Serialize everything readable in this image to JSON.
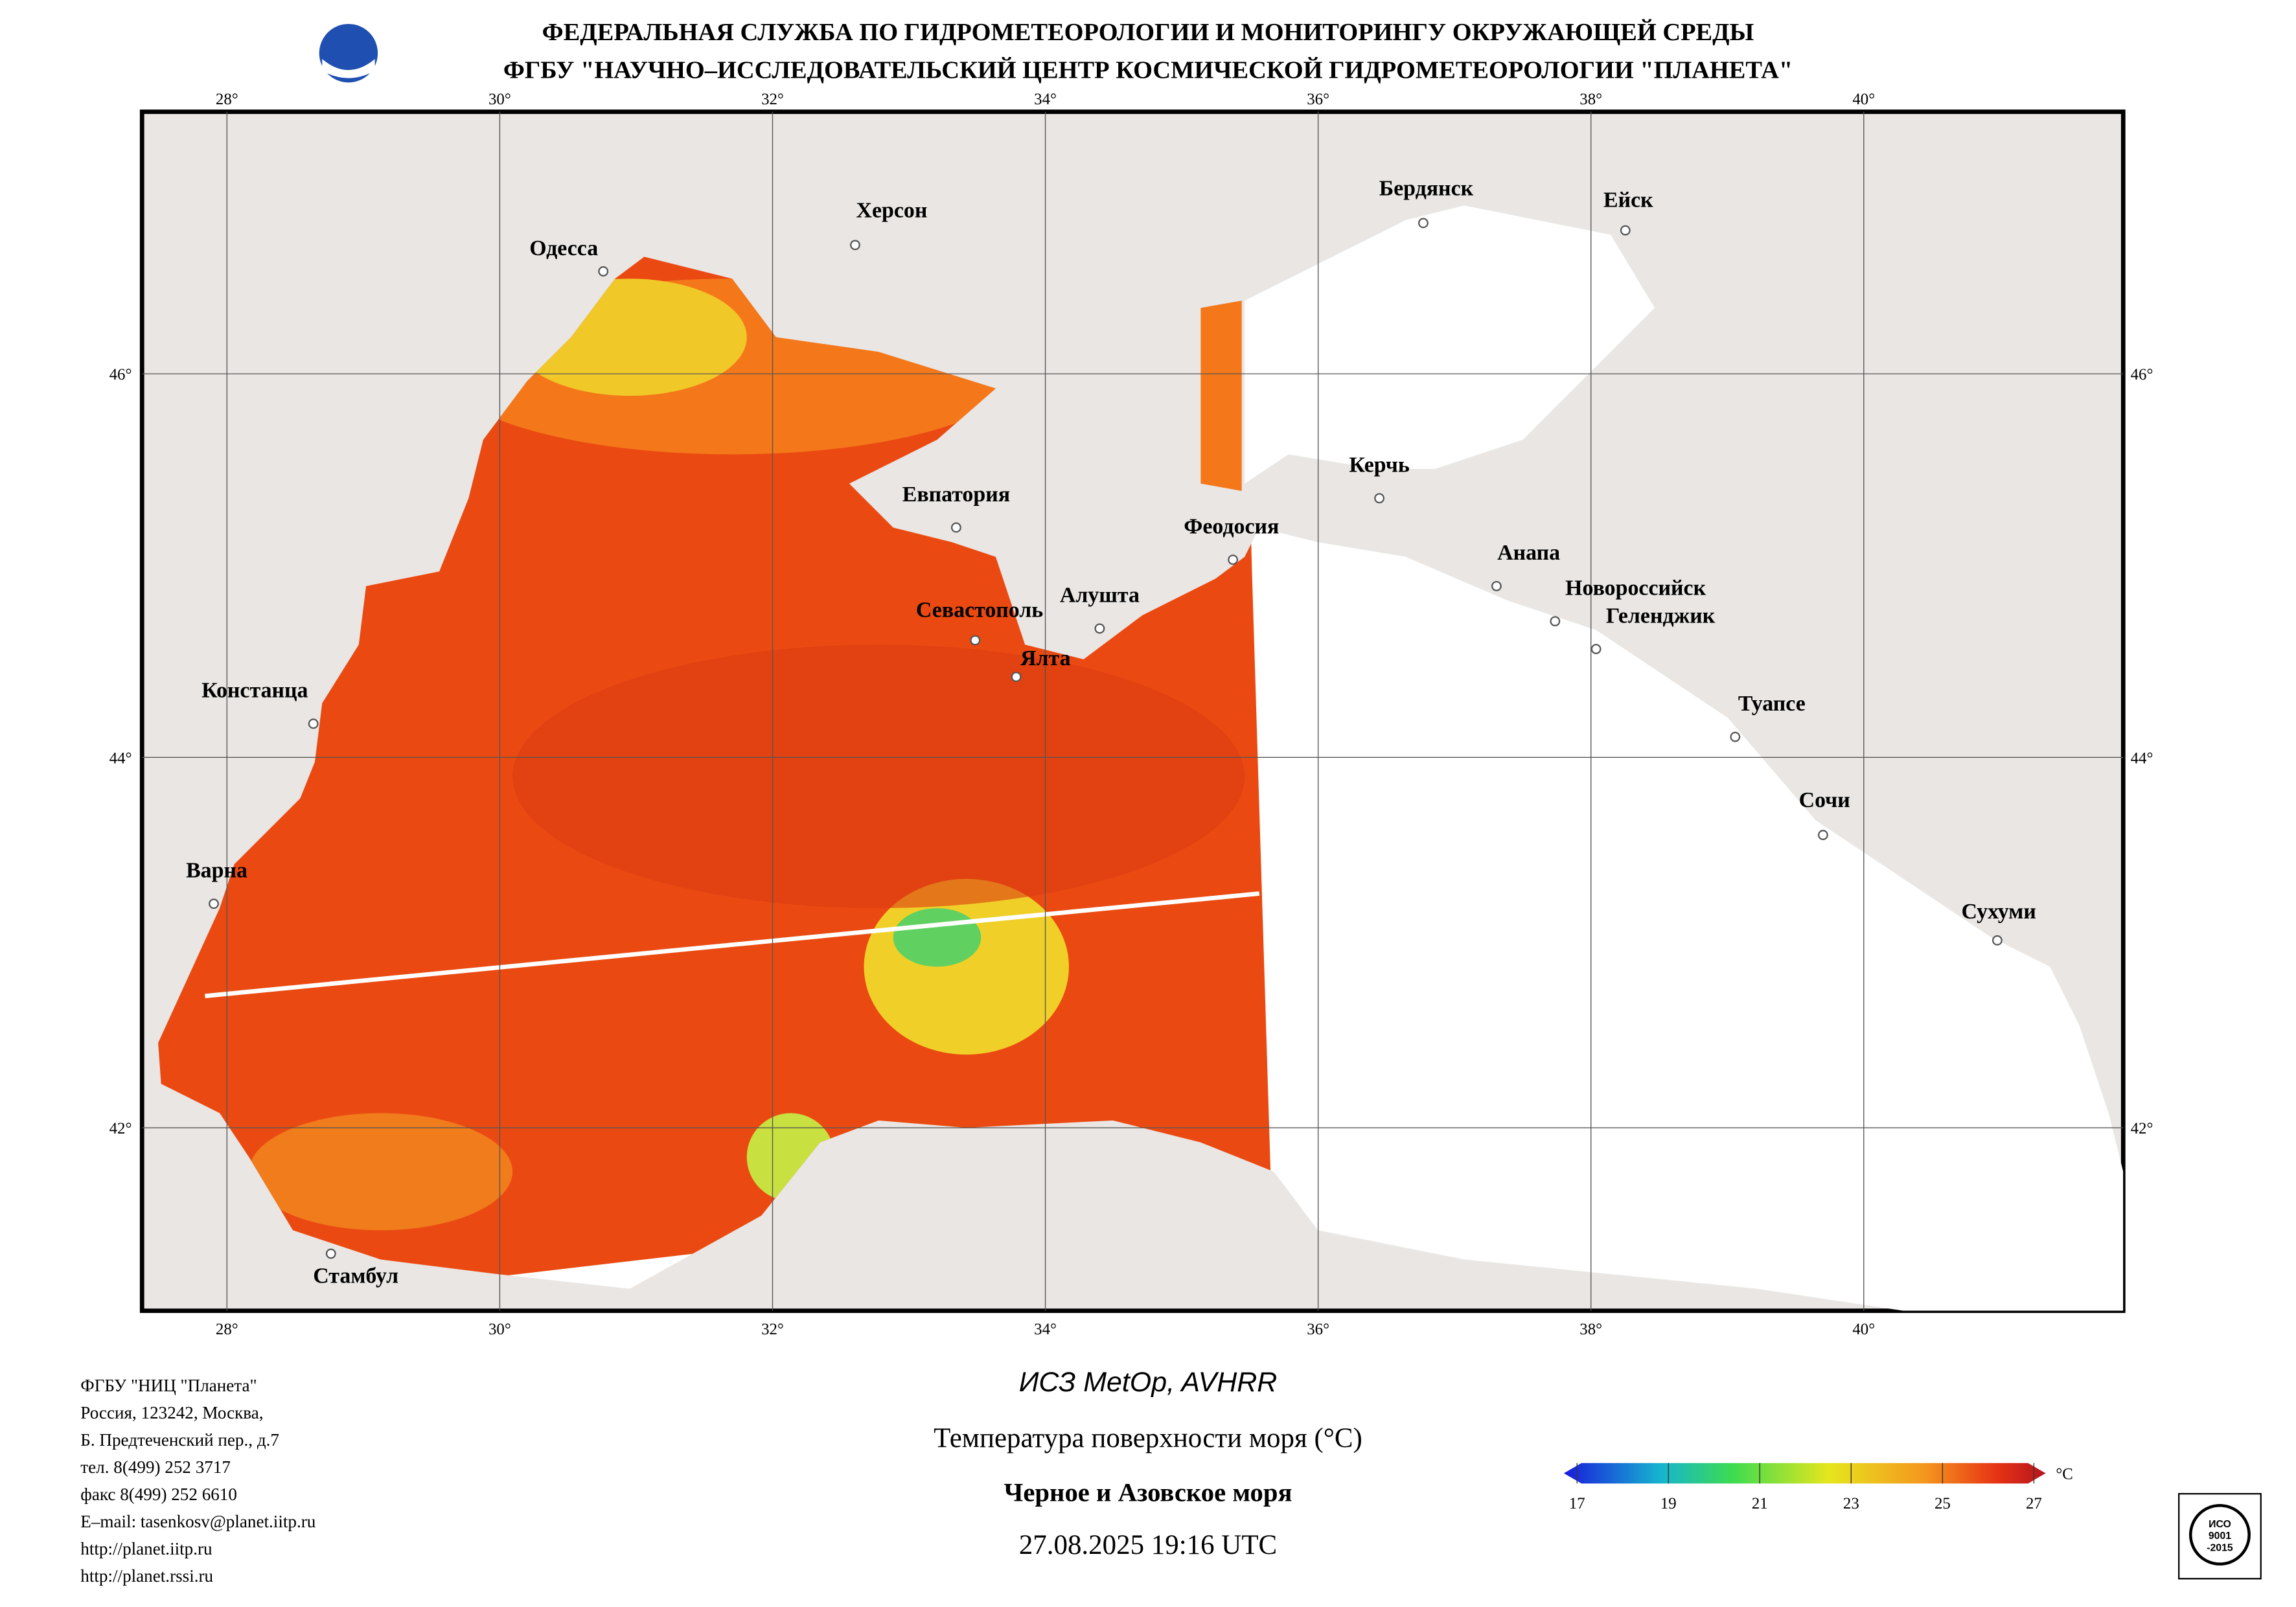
{
  "header": {
    "line1": "ФЕДЕРАЛЬНАЯ СЛУЖБА ПО ГИДРОМЕТЕОРОЛОГИИ И МОНИТОРИНГУ ОКРУЖАЮЩЕЙ СРЕДЫ",
    "line2": "ФГБУ \"НАУЧНО–ИССЛЕДОВАТЕЛЬСКИЙ ЦЕНТР КОСМИЧЕСКОЙ ГИДРОМЕТЕОРОЛОГИИ \"ПЛАНЕТА\""
  },
  "map": {
    "longitudes": [
      "28°",
      "30°",
      "32°",
      "34°",
      "36°",
      "38°",
      "40°"
    ],
    "latitudes": [
      "46°",
      "44°",
      "42°"
    ],
    "cities": [
      "Одесса",
      "Херсон",
      "Бердянск",
      "Ейск",
      "Евпатория",
      "Керчь",
      "Феодосия",
      "Анапа",
      "Новороссийск",
      "Геленджик",
      "Севастополь",
      "Алушта",
      "Ялта",
      "Констанца",
      "Туапсе",
      "Сочи",
      "Варна",
      "Сухуми",
      "Стамбул"
    ]
  },
  "footer": {
    "org": [
      "ФГБУ \"НИЦ \"Планета\"",
      "Россия, 123242, Москва,",
      "Б. Предтеченский пер., д.7",
      "тел. 8(499) 252 3717",
      "факс 8(499) 252 6610",
      "E–mail: tasenkosv@planet.iitp.ru",
      "http://planet.iitp.ru",
      "http://planet.rssi.ru"
    ],
    "satellite": "ИСЗ MetOp, AVHRR",
    "parameter": "Температура поверхности моря (°C)",
    "region": "Черное и Азовское моря",
    "datetime": "27.08.2025 19:16 UTC",
    "iso": [
      "ИСО",
      "9001",
      "-2015"
    ]
  },
  "colorbar": {
    "ticks": [
      17,
      19,
      21,
      23,
      25,
      27
    ],
    "unit": "°C"
  }
}
